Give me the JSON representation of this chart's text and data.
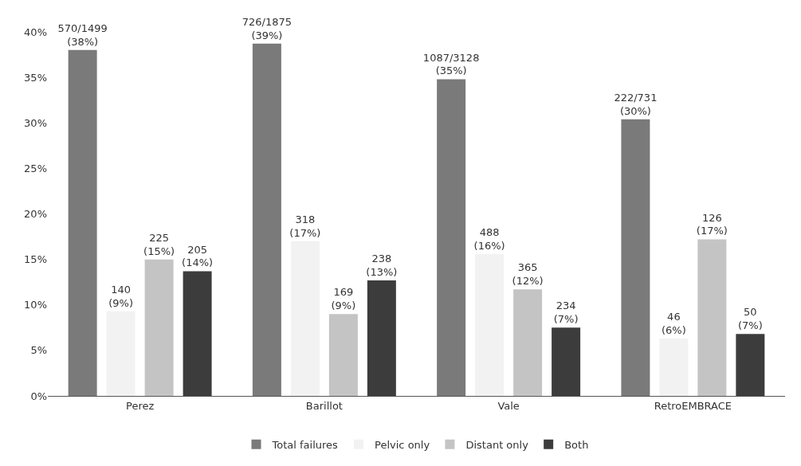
{
  "chart_data": {
    "type": "bar",
    "categories": [
      "Perez",
      "Barillot",
      "Vale",
      "RetroEMBRACE"
    ],
    "series": [
      {
        "name": "Total failures",
        "color": "#7a7a7a",
        "values": [
          38.0,
          38.7,
          34.8,
          30.4
        ],
        "value_labels": [
          "570/1499\n(38%)",
          "726/1875\n(39%)",
          "1087/3128\n(35%)",
          "222/731\n(30%)"
        ]
      },
      {
        "name": "Pelvic only",
        "color": "#f2f2f2",
        "values": [
          9.3,
          17.0,
          15.6,
          6.3
        ],
        "value_labels": [
          "140\n(9%)",
          "318\n(17%)",
          "488\n(16%)",
          "46\n(6%)"
        ]
      },
      {
        "name": "Distant only",
        "color": "#c4c4c4",
        "values": [
          15.0,
          9.0,
          11.7,
          17.2
        ],
        "value_labels": [
          "225\n(15%)",
          "169\n(9%)",
          "365\n(12%)",
          "126\n(17%)"
        ]
      },
      {
        "name": "Both",
        "color": "#3c3c3c",
        "values": [
          13.7,
          12.7,
          7.5,
          6.8
        ],
        "value_labels": [
          "205\n(14%)",
          "238\n(13%)",
          "234\n(7%)",
          "50\n(7%)"
        ]
      }
    ],
    "ylim": [
      0,
      40
    ],
    "yticks": [
      {
        "value": 0,
        "label": "0%"
      },
      {
        "value": 5,
        "label": "5%"
      },
      {
        "value": 10,
        "label": "10%"
      },
      {
        "value": 15,
        "label": "15%"
      },
      {
        "value": 20,
        "label": "20%"
      },
      {
        "value": 25,
        "label": "25%"
      },
      {
        "value": 30,
        "label": "30%"
      },
      {
        "value": 35,
        "label": "35%"
      },
      {
        "value": 40,
        "label": "40%"
      }
    ],
    "legend": "bottom"
  }
}
